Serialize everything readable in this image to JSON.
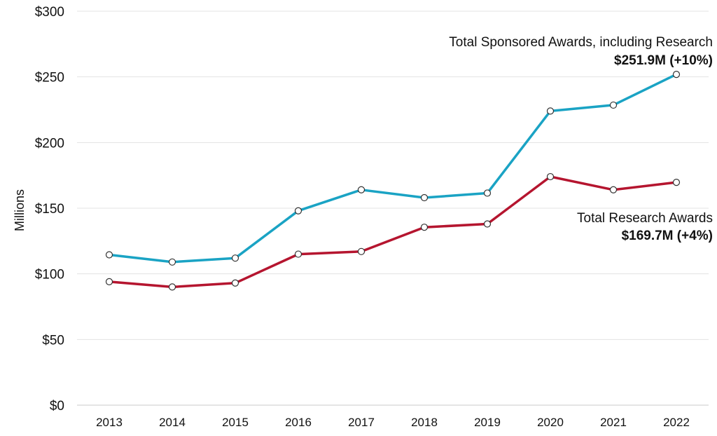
{
  "chart_data": {
    "type": "line",
    "title": "",
    "xlabel": "",
    "ylabel": "Millions",
    "x": [
      "2013",
      "2014",
      "2015",
      "2016",
      "2017",
      "2018",
      "2019",
      "2020",
      "2021",
      "2022"
    ],
    "ylim": [
      0,
      300
    ],
    "yticks": [
      0,
      50,
      100,
      150,
      200,
      250,
      300
    ],
    "ytick_labels": [
      "$0",
      "$50",
      "$100",
      "$150",
      "$200",
      "$250",
      "$300"
    ],
    "grid": "horizontal",
    "legend": "none",
    "series": [
      {
        "key": "sponsored",
        "color": "#1aa3c4",
        "values": [
          114.5,
          109,
          112,
          148,
          164,
          158,
          161.5,
          224,
          228.5,
          251.9
        ]
      },
      {
        "key": "research",
        "color": "#b5152f",
        "values": [
          94,
          90,
          93,
          115,
          117,
          135.5,
          138,
          174,
          164,
          169.7
        ]
      }
    ],
    "annotations": [
      {
        "series": "sponsored",
        "label": "Total Sponsored Awards, including Research",
        "value": "$251.9M (+10%)"
      },
      {
        "series": "research",
        "label": "Total Research Awards",
        "value": "$169.7M (+4%)"
      }
    ]
  }
}
